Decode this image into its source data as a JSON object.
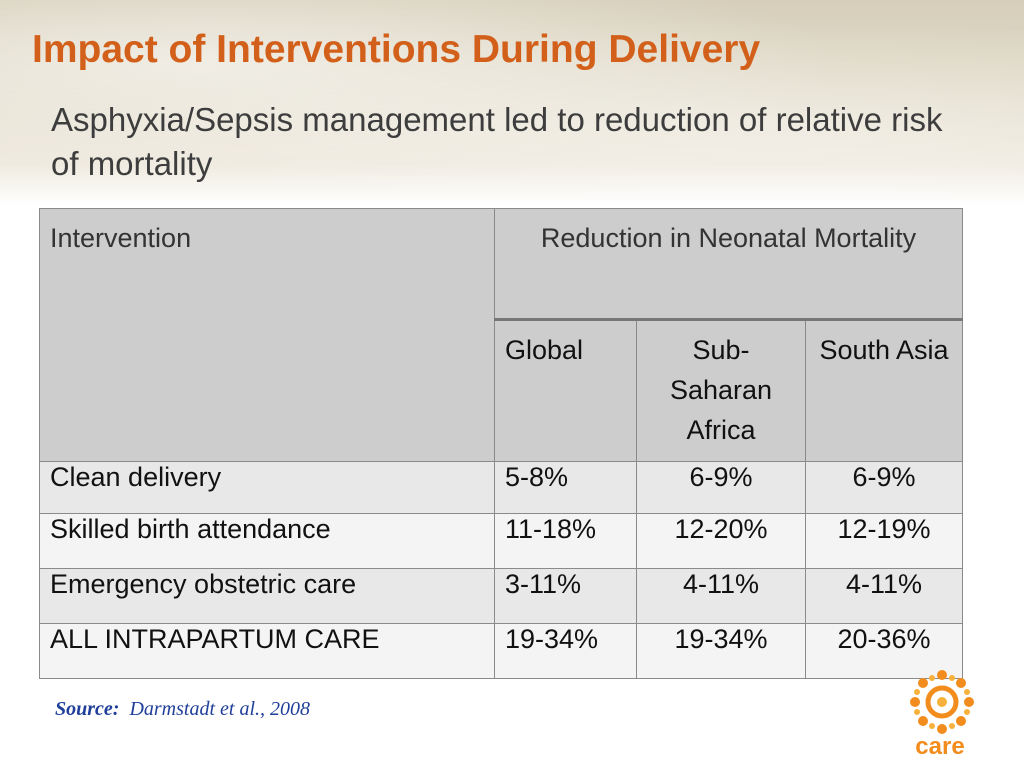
{
  "slide": {
    "title": "Impact of Interventions During Delivery",
    "subtitle": "Asphyxia/Sepsis management led to reduction of relative risk of mortality"
  },
  "table": {
    "header": {
      "intervention": "Intervention",
      "reduction": "Reduction in Neonatal Mortality",
      "columns": [
        "Global",
        "Sub-Saharan Africa",
        "South Asia"
      ]
    },
    "rows": [
      {
        "intervention": "Clean delivery",
        "global": "5-8%",
        "ssa": "6-9%",
        "south_asia": "6-9%"
      },
      {
        "intervention": "Skilled birth attendance",
        "global": "11-18%",
        "ssa": "12-20%",
        "south_asia": "12-19%"
      },
      {
        "intervention": "Emergency obstetric care",
        "global": "3-11%",
        "ssa": "4-11%",
        "south_asia": "4-11%"
      },
      {
        "intervention": "ALL INTRAPARTUM CARE",
        "global": "19-34%",
        "ssa": "19-34%",
        "south_asia": "20-36%"
      }
    ]
  },
  "source": {
    "label": "Source:",
    "citation": "Darmstadt et al., 2008"
  },
  "logo": {
    "text": "care",
    "icon": "care-sun-logo",
    "color": "#f28c1c"
  },
  "colors": {
    "title": "#d2601a",
    "subtitle": "#3d3d3d",
    "header_bg": "#cdcdcd",
    "source": "#1f3f9a"
  }
}
